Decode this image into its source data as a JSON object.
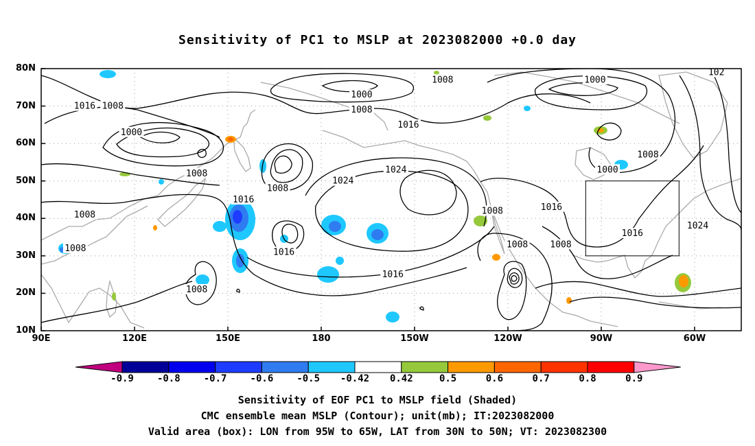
{
  "title": "Sensitivity of PC1 to MSLP at 2023082000 +0.0 day",
  "lat_labels": [
    "80N",
    "70N",
    "60N",
    "50N",
    "40N",
    "30N",
    "20N",
    "10N"
  ],
  "lon_labels": [
    "90E",
    "120E",
    "150E",
    "180",
    "150W",
    "120W",
    "90W",
    "60W"
  ],
  "contour_labels": [
    {
      "text": "1016",
      "lon": 104,
      "lat": 70
    },
    {
      "text": "1008",
      "lon": 113,
      "lat": 70
    },
    {
      "text": "1000",
      "lon": 119,
      "lat": 63
    },
    {
      "text": "1008",
      "lon": 140,
      "lat": 52
    },
    {
      "text": "1016",
      "lon": 155,
      "lat": 45
    },
    {
      "text": "1008",
      "lon": 166,
      "lat": 48
    },
    {
      "text": "1008",
      "lon": 104,
      "lat": 41
    },
    {
      "text": "1008",
      "lon": 101,
      "lat": 32
    },
    {
      "text": "1008",
      "lon": 140,
      "lat": 21
    },
    {
      "text": "1016",
      "lon": 168,
      "lat": 31
    },
    {
      "text": "1000",
      "lon": 193,
      "lat": 73
    },
    {
      "text": "1008",
      "lon": 193,
      "lat": 69
    },
    {
      "text": "1008",
      "lon": 219,
      "lat": 77
    },
    {
      "text": "1016",
      "lon": 208,
      "lat": 65
    },
    {
      "text": "1024",
      "lon": 187,
      "lat": 50
    },
    {
      "text": "1024",
      "lon": 204,
      "lat": 53
    },
    {
      "text": "1016",
      "lon": 203,
      "lat": 25
    },
    {
      "text": "1008",
      "lon": 235,
      "lat": 42
    },
    {
      "text": "1016",
      "lon": 254,
      "lat": 43
    },
    {
      "text": "1008",
      "lon": 243,
      "lat": 33
    },
    {
      "text": "1008",
      "lon": 257,
      "lat": 33
    },
    {
      "text": "1000",
      "lon": 268,
      "lat": 77
    },
    {
      "text": "1000",
      "lon": 272,
      "lat": 53
    },
    {
      "text": "1008",
      "lon": 285,
      "lat": 57
    },
    {
      "text": "1016",
      "lon": 280,
      "lat": 36
    },
    {
      "text": "1024",
      "lon": 301,
      "lat": 38
    },
    {
      "text": "102",
      "lon": 307,
      "lat": 79
    }
  ],
  "valid_box": {
    "lon_min": 265,
    "lon_max": 295,
    "lat_min": 30,
    "lat_max": 50
  },
  "colorbar": {
    "labels": [
      "-0.9",
      "-0.8",
      "-0.7",
      "-0.6",
      "-0.5",
      "-0.42",
      "0.42",
      "0.5",
      "0.6",
      "0.7",
      "0.8",
      "0.9"
    ],
    "colors": [
      "#000099",
      "#0000ee",
      "#1e3cff",
      "#2f7cf0",
      "#1ec8ff",
      "#ffffff",
      "#95c93b",
      "#ff9900",
      "#ff6600",
      "#ff3300",
      "#ff0000"
    ],
    "low_color": "#c0007f",
    "high_color": "#ff99cc"
  },
  "caption": [
    "Sensitivity of EOF PC1 to MSLP field (Shaded)",
    "CMC ensemble mean MSLP (Contour); unit(mb); IT:2023082000",
    "Valid area (box): LON from 95W to 65W, LAT from 30N to 50N; VT: 2023082300"
  ]
}
